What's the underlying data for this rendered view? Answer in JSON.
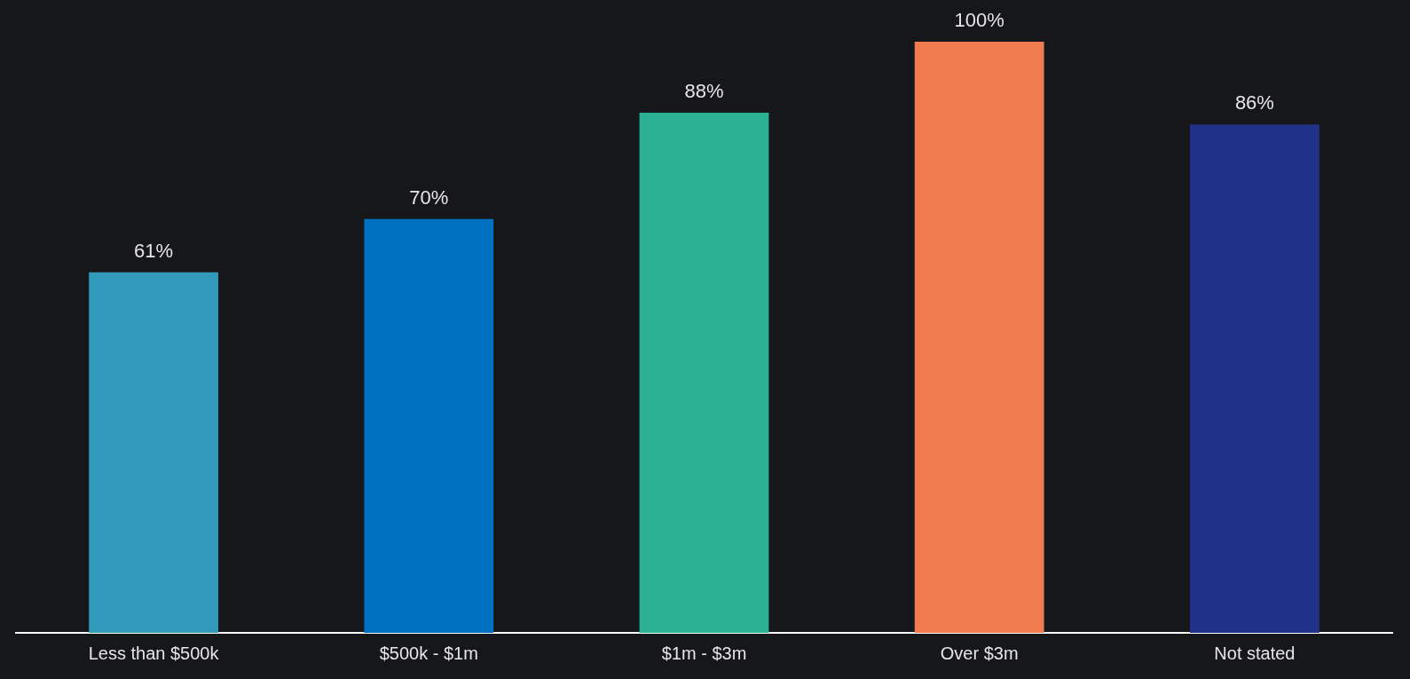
{
  "chart_data": {
    "type": "bar",
    "categories": [
      "Less than $500k",
      "$500k - $1m",
      "$1m - $3m",
      "Over $3m",
      "Not stated"
    ],
    "values": [
      61,
      70,
      88,
      100,
      86
    ],
    "colors": [
      "#3399bb",
      "#0070c0",
      "#2bb093",
      "#f07c50",
      "#20318a"
    ],
    "value_labels": [
      "61%",
      "70%",
      "88%",
      "100%",
      "86%"
    ],
    "grid": false,
    "legend": false
  }
}
